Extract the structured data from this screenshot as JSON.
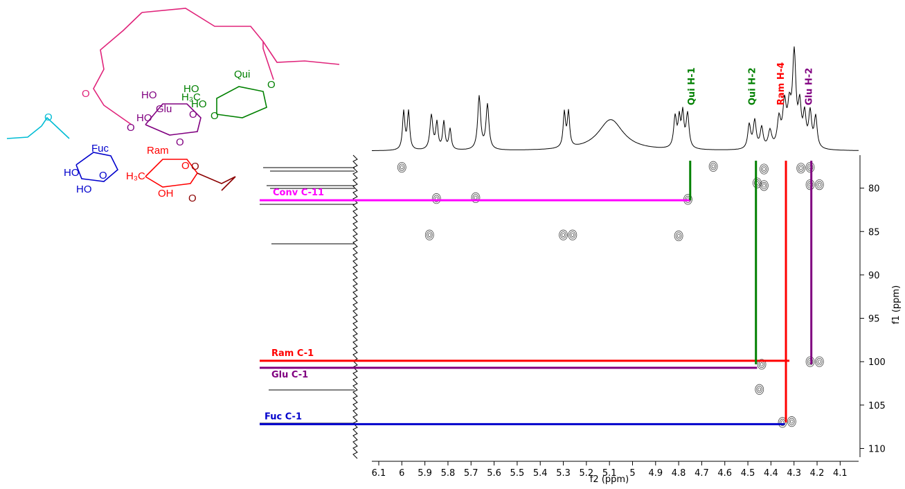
{
  "chart_data": {
    "type": "scatter",
    "xlabel": "f2 (ppm)",
    "ylabel": "f1 (ppm)",
    "xlim": [
      6.13,
      4.02
    ],
    "ylim": [
      76.2,
      111
    ],
    "xticks": [
      6.1,
      6.0,
      5.9,
      5.8,
      5.7,
      5.6,
      5.5,
      5.4,
      5.3,
      5.2,
      5.1,
      5.0,
      4.9,
      4.8,
      4.7,
      4.6,
      4.5,
      4.4,
      4.3,
      4.2,
      4.1
    ],
    "yticks": [
      80,
      85,
      90,
      95,
      100,
      105,
      110
    ],
    "x": [
      6.0,
      4.65,
      4.43,
      4.27,
      4.23,
      4.46,
      4.43,
      4.23,
      4.19,
      5.85,
      5.68,
      4.76,
      5.88,
      5.3,
      5.26,
      4.8,
      4.44,
      4.23,
      4.19,
      4.45,
      4.35,
      4.31
    ],
    "y": [
      77.6,
      77.5,
      77.8,
      77.7,
      77.6,
      79.4,
      79.7,
      79.6,
      79.6,
      81.2,
      81.1,
      81.3,
      85.4,
      85.4,
      85.4,
      85.5,
      100.3,
      100.0,
      100.0,
      103.2,
      107.0,
      106.9
    ],
    "h_lines": [
      {
        "label": "Conv C-11",
        "color": "#ff00ff",
        "f1": 81.4,
        "f2_end": 4.75
      },
      {
        "label": "Ram C-1",
        "color": "#ff0000",
        "f1": 99.9,
        "f2_end": 4.32
      },
      {
        "label": "Glu C-1",
        "color": "#800080",
        "f1": 100.7,
        "f2_end": 4.46
      },
      {
        "label": "Fuc C-1",
        "color": "#0000cc",
        "f1": 107.2,
        "f2_end": 4.34
      }
    ],
    "v_lines": [
      {
        "label": "Qui H-1",
        "color": "#008000",
        "f2": 4.75,
        "f1_end": 81.4
      },
      {
        "label": "Qui H-2",
        "color": "#008000",
        "f2": 4.465,
        "f1_end": 100.3
      },
      {
        "label": "Ram H-4",
        "color": "#ff0000",
        "f2": 4.335,
        "f1_end": 107.0
      },
      {
        "label": "Glu H-2",
        "color": "#800080",
        "f2": 4.225,
        "f1_end": 100.3
      }
    ]
  },
  "structure": {
    "labels": [
      "Qui",
      "H₃C",
      "HO",
      "HO",
      "O",
      "O",
      "HO",
      "Glu",
      "HO",
      "O",
      "O",
      "O",
      "Fuc",
      "HO",
      "HO",
      "O",
      "Ram",
      "H₃C",
      "O",
      "OH",
      "O",
      "O",
      "O",
      "O"
    ]
  }
}
